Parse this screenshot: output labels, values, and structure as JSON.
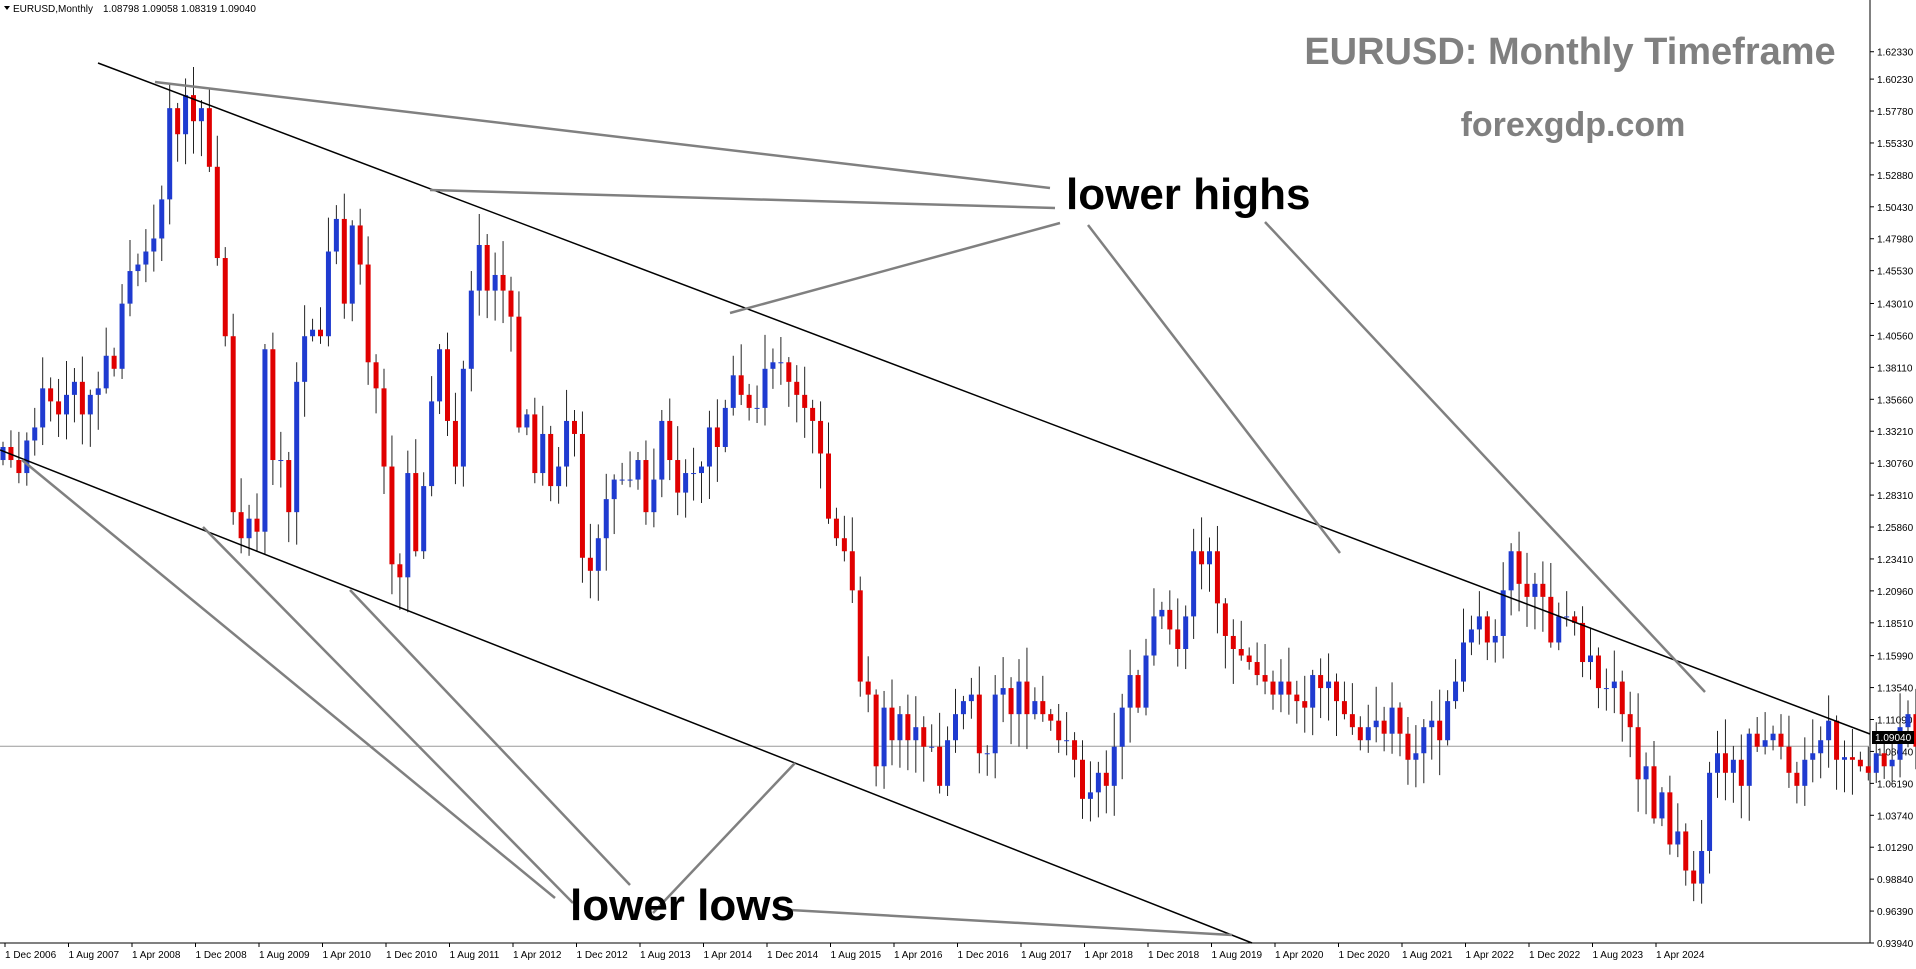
{
  "header": {
    "symbol_label": "EURUSD,Monthly",
    "ohlc_label": "1.08798 1.09058 1.08319 1.09040"
  },
  "annotations": {
    "title": "EURUSD: Monthly Timeframe",
    "website": "forexgdp.com",
    "lower_highs": "lower highs",
    "lower_lows": "lower lows"
  },
  "colors": {
    "bull": "#1f3bd0",
    "bear": "#e00000",
    "wick": "#222222",
    "trendline": "#000000",
    "pointer": "#808080",
    "title_text": "#808080",
    "label_text": "#000000"
  },
  "chart_data": {
    "type": "candlestick",
    "symbol": "EURUSD",
    "timeframe": "Monthly",
    "current_price": "1.09040",
    "ylim": [
      0.9394,
      1.6323
    ],
    "y_ticks": [
      "1.62330",
      "1.60230",
      "1.57780",
      "1.55330",
      "1.52880",
      "1.50430",
      "1.47980",
      "1.45530",
      "1.43010",
      "1.40560",
      "1.38110",
      "1.35660",
      "1.33210",
      "1.30760",
      "1.28310",
      "1.25860",
      "1.23410",
      "1.20960",
      "1.18510",
      "1.15990",
      "1.13540",
      "1.11090",
      "1.08640",
      "1.06190",
      "1.03740",
      "1.01290",
      "0.98840",
      "0.96390",
      "0.93940"
    ],
    "x_ticks": [
      "1 Dec 2006",
      "1 Aug 2007",
      "1 Apr 2008",
      "1 Dec 2008",
      "1 Aug 2009",
      "1 Apr 2010",
      "1 Dec 2010",
      "1 Aug 2011",
      "1 Apr 2012",
      "1 Dec 2012",
      "1 Aug 2013",
      "1 Apr 2014",
      "1 Dec 2014",
      "1 Aug 2015",
      "1 Apr 2016",
      "1 Dec 2016",
      "1 Aug 2017",
      "1 Apr 2018",
      "1 Dec 2018",
      "1 Aug 2019",
      "1 Apr 2020",
      "1 Dec 2020",
      "1 Aug 2021",
      "1 Apr 2022",
      "1 Dec 2022",
      "1 Aug 2023",
      "1 Apr 2024"
    ],
    "closes": [
      1.32,
      1.31,
      1.3,
      1.325,
      1.335,
      1.365,
      1.355,
      1.345,
      1.36,
      1.37,
      1.345,
      1.36,
      1.365,
      1.39,
      1.38,
      1.43,
      1.455,
      1.46,
      1.47,
      1.48,
      1.51,
      1.58,
      1.56,
      1.59,
      1.57,
      1.58,
      1.535,
      1.465,
      1.405,
      1.27,
      1.25,
      1.265,
      1.255,
      1.395,
      1.31,
      1.31,
      1.27,
      1.37,
      1.405,
      1.41,
      1.405,
      1.47,
      1.495,
      1.43,
      1.49,
      1.46,
      1.385,
      1.365,
      1.305,
      1.23,
      1.22,
      1.3,
      1.24,
      1.29,
      1.355,
      1.395,
      1.34,
      1.305,
      1.38,
      1.44,
      1.475,
      1.44,
      1.452,
      1.44,
      1.42,
      1.335,
      1.345,
      1.3,
      1.33,
      1.29,
      1.305,
      1.34,
      1.33,
      1.235,
      1.225,
      1.25,
      1.28,
      1.295,
      1.295,
      1.295,
      1.31,
      1.27,
      1.295,
      1.34,
      1.31,
      1.285,
      1.3,
      1.3,
      1.305,
      1.335,
      1.32,
      1.35,
      1.375,
      1.36,
      1.35,
      1.35,
      1.38,
      1.385,
      1.385,
      1.37,
      1.36,
      1.35,
      1.34,
      1.315,
      1.265,
      1.25,
      1.24,
      1.21,
      1.14,
      1.13,
      1.075,
      1.12,
      1.095,
      1.115,
      1.095,
      1.105,
      1.09,
      1.09,
      1.06,
      1.095,
      1.115,
      1.125,
      1.13,
      1.085,
      1.085,
      1.13,
      1.135,
      1.115,
      1.14,
      1.115,
      1.125,
      1.115,
      1.11,
      1.095,
      1.095,
      1.08,
      1.05,
      1.055,
      1.07,
      1.06,
      1.09,
      1.12,
      1.145,
      1.12,
      1.16,
      1.19,
      1.195,
      1.18,
      1.165,
      1.19,
      1.24,
      1.23,
      1.24,
      1.2,
      1.175,
      1.165,
      1.16,
      1.155,
      1.145,
      1.14,
      1.13,
      1.14,
      1.13,
      1.125,
      1.12,
      1.145,
      1.135,
      1.14,
      1.125,
      1.115,
      1.105,
      1.095,
      1.105,
      1.11,
      1.1,
      1.12,
      1.1,
      1.08,
      1.085,
      1.105,
      1.11,
      1.095,
      1.125,
      1.14,
      1.17,
      1.18,
      1.19,
      1.17,
      1.175,
      1.21,
      1.24,
      1.215,
      1.205,
      1.215,
      1.205,
      1.17,
      1.19,
      1.19,
      1.185,
      1.155,
      1.16,
      1.135,
      1.135,
      1.14,
      1.115,
      1.105,
      1.065,
      1.075,
      1.035,
      1.055,
      1.015,
      1.025,
      0.995,
      0.985,
      1.01,
      1.07,
      1.085,
      1.07,
      1.08,
      1.06,
      1.1,
      1.09,
      1.095,
      1.1,
      1.09,
      1.07,
      1.06,
      1.08,
      1.085,
      1.095,
      1.11,
      1.08,
      1.082,
      1.08,
      1.075,
      1.07,
      1.085,
      1.075,
      1.08,
      1.105,
      1.115,
      1.09,
      1.09,
      1.035
    ]
  }
}
